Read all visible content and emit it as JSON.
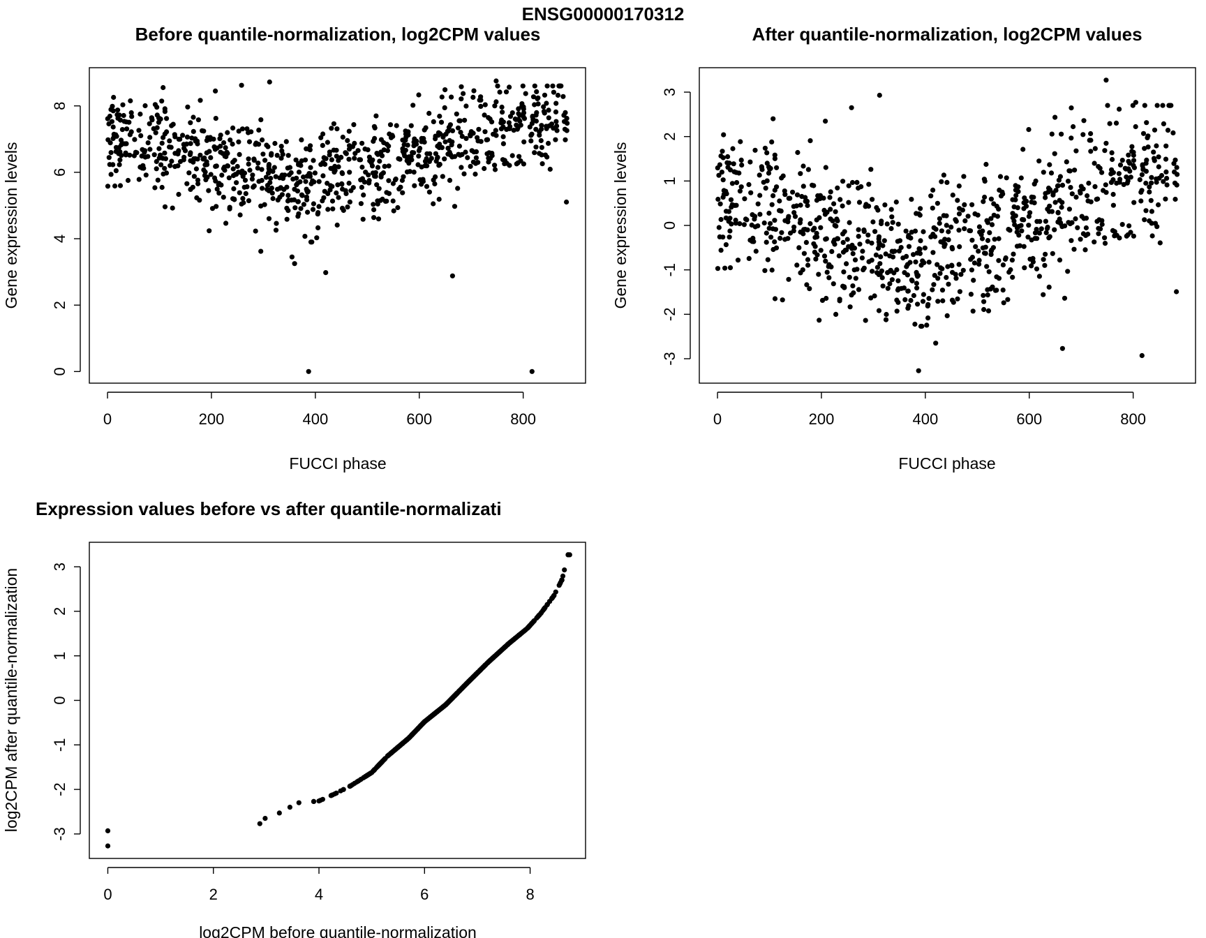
{
  "figure_title": "ENSG00000170312",
  "chart_data": [
    {
      "id": "before",
      "type": "scatter",
      "title": "Before quantile-normalization, log2CPM values",
      "xlabel": "FUCCI phase",
      "ylabel": "Gene expression levels",
      "xlim": [
        -35,
        920
      ],
      "ylim": [
        -0.35,
        9.15
      ],
      "xticks": [
        0,
        200,
        400,
        600,
        800
      ],
      "yticks": [
        0,
        2,
        4,
        6,
        8
      ],
      "n_points": 880,
      "trend": "U-shaped: ~7.1 at phase 0, minimum ~5.6 near phase 380, rising to ~7.7 near phase 880",
      "notable_points": [
        {
          "x": 107,
          "y": 8.55
        },
        {
          "x": 258,
          "y": 8.62
        },
        {
          "x": 312,
          "y": 8.72
        },
        {
          "x": 748,
          "y": 8.75
        },
        {
          "x": 295,
          "y": 3.62
        },
        {
          "x": 355,
          "y": 3.45
        },
        {
          "x": 360,
          "y": 3.25
        },
        {
          "x": 420,
          "y": 2.98
        },
        {
          "x": 664,
          "y": 2.88
        },
        {
          "x": 387,
          "y": 0.0
        },
        {
          "x": 817,
          "y": 0.0
        }
      ]
    },
    {
      "id": "after",
      "type": "scatter",
      "title": "After quantile-normalization, log2CPM values",
      "xlabel": "FUCCI phase",
      "ylabel": "Gene expression levels",
      "xlim": [
        -35,
        920
      ],
      "ylim": [
        -3.55,
        3.55
      ],
      "xticks": [
        0,
        200,
        400,
        600,
        800
      ],
      "yticks": [
        -3,
        -2,
        -1,
        0,
        1,
        2,
        3
      ],
      "n_points": 880,
      "trend": "U-shaped: ~0.6 at phase 0, minimum ~-0.9 near phase 380, rising to ~1.0 near phase 880",
      "notable_points": [
        {
          "x": 107,
          "y": 2.4
        },
        {
          "x": 258,
          "y": 2.65
        },
        {
          "x": 312,
          "y": 2.93
        },
        {
          "x": 748,
          "y": 3.27
        },
        {
          "x": 805,
          "y": 2.77
        },
        {
          "x": 387,
          "y": -3.27
        },
        {
          "x": 817,
          "y": -2.93
        },
        {
          "x": 664,
          "y": -2.77
        },
        {
          "x": 420,
          "y": -2.65
        }
      ]
    },
    {
      "id": "qq",
      "type": "scatter",
      "title": "Expression values before vs after quantile-normalizati",
      "xlabel": "log2CPM before quantile-normalization",
      "ylabel": "log2CPM after quantile-normalization",
      "xlim": [
        -0.35,
        9.05
      ],
      "ylim": [
        -3.55,
        3.55
      ],
      "xticks": [
        0,
        2,
        4,
        6,
        8
      ],
      "yticks": [
        -3,
        -2,
        -1,
        0,
        1,
        2,
        3
      ],
      "monotone_curve": [
        {
          "x": 0.0,
          "y": -3.27
        },
        {
          "x": 0.0,
          "y": -2.93
        },
        {
          "x": 2.88,
          "y": -2.77
        },
        {
          "x": 2.98,
          "y": -2.65
        },
        {
          "x": 3.25,
          "y": -2.53
        },
        {
          "x": 3.45,
          "y": -2.4
        },
        {
          "x": 3.62,
          "y": -2.3
        },
        {
          "x": 4.0,
          "y": -2.26
        },
        {
          "x": 4.3,
          "y": -2.1
        },
        {
          "x": 4.6,
          "y": -1.92
        },
        {
          "x": 5.0,
          "y": -1.62
        },
        {
          "x": 5.3,
          "y": -1.25
        },
        {
          "x": 5.7,
          "y": -0.85
        },
        {
          "x": 6.0,
          "y": -0.48
        },
        {
          "x": 6.4,
          "y": -0.1
        },
        {
          "x": 6.8,
          "y": 0.38
        },
        {
          "x": 7.2,
          "y": 0.85
        },
        {
          "x": 7.6,
          "y": 1.28
        },
        {
          "x": 7.95,
          "y": 1.62
        },
        {
          "x": 8.2,
          "y": 1.95
        },
        {
          "x": 8.45,
          "y": 2.35
        },
        {
          "x": 8.6,
          "y": 2.7
        },
        {
          "x": 8.65,
          "y": 2.93
        },
        {
          "x": 8.72,
          "y": 3.27
        }
      ]
    }
  ]
}
